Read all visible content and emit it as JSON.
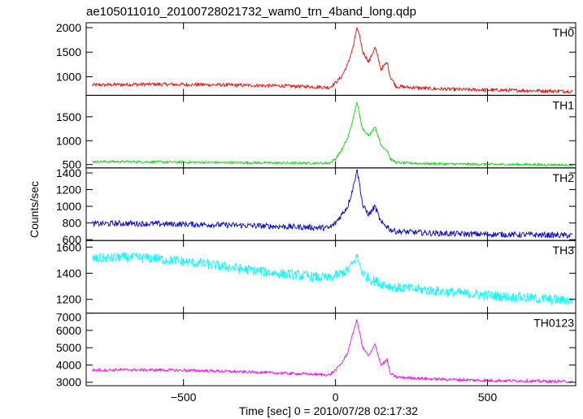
{
  "chart_data": {
    "type": "line",
    "title": "ae105011010_20100728021732_wam0_trn_4band_long.qdp",
    "xlabel": "Time [sec] 0 = 2010/07/28 02:17:32",
    "ylabel": "Counts/sec",
    "xlim": [
      -820,
      790
    ],
    "x_ticks": [
      -500,
      0,
      500
    ],
    "x_tick_labels": [
      "−500",
      "0",
      "500"
    ],
    "grid": false,
    "legend": "none",
    "panels": [
      {
        "name": "TH0",
        "color": "#ff0000",
        "ylim": [
          620,
          2100
        ],
        "y_ticks": [
          1000,
          1500,
          2000
        ],
        "y_tick_labels": [
          "1000",
          "1500",
          "2000"
        ],
        "series": {
          "x": [
            -800,
            -700,
            -600,
            -500,
            -400,
            -300,
            -200,
            -100,
            -20,
            0,
            20,
            40,
            60,
            70,
            80,
            90,
            110,
            130,
            150,
            170,
            180,
            200,
            300,
            400,
            500,
            600,
            700,
            780
          ],
          "y": [
            830,
            840,
            845,
            840,
            835,
            825,
            815,
            800,
            780,
            880,
            1000,
            1250,
            1650,
            2000,
            1800,
            1500,
            1300,
            1600,
            1150,
            1300,
            1000,
            800,
            760,
            740,
            730,
            720,
            710,
            700
          ],
          "noise": 35
        }
      },
      {
        "name": "TH1",
        "color": "#00dd00",
        "ylim": [
          430,
          1950
        ],
        "y_ticks": [
          500,
          1000,
          1500
        ],
        "y_tick_labels": [
          "500",
          "1000",
          "1500"
        ],
        "series": {
          "x": [
            -800,
            -700,
            -600,
            -500,
            -400,
            -300,
            -200,
            -100,
            -20,
            0,
            20,
            40,
            60,
            70,
            80,
            90,
            110,
            130,
            150,
            170,
            180,
            200,
            300,
            400,
            500,
            600,
            700,
            780
          ],
          "y": [
            560,
            560,
            555,
            550,
            545,
            540,
            535,
            530,
            530,
            620,
            800,
            1050,
            1500,
            1820,
            1500,
            1250,
            1100,
            1300,
            900,
            800,
            620,
            540,
            520,
            510,
            505,
            500,
            495,
            490
          ],
          "noise": 25
        }
      },
      {
        "name": "TH2",
        "color": "#0000cc",
        "ylim": [
          590,
          1460
        ],
        "y_ticks": [
          600,
          800,
          1000,
          1200,
          1400
        ],
        "y_tick_labels": [
          "600",
          "800",
          "1000",
          "1200",
          "1400"
        ],
        "series": {
          "x": [
            -800,
            -700,
            -600,
            -500,
            -400,
            -300,
            -200,
            -100,
            -20,
            0,
            20,
            40,
            60,
            70,
            80,
            90,
            110,
            130,
            150,
            170,
            180,
            200,
            300,
            400,
            500,
            600,
            700,
            780
          ],
          "y": [
            790,
            795,
            790,
            785,
            780,
            770,
            760,
            750,
            740,
            800,
            900,
            1000,
            1250,
            1450,
            1250,
            1000,
            900,
            1000,
            800,
            760,
            720,
            700,
            680,
            670,
            665,
            660,
            655,
            650
          ],
          "noise": 35
        }
      },
      {
        "name": "TH3",
        "color": "#00ffff",
        "ylim": [
          1095,
          1650
        ],
        "y_ticks": [
          1200,
          1400,
          1600
        ],
        "y_tick_labels": [
          "1200",
          "1400",
          "1600"
        ],
        "series": {
          "x": [
            -800,
            -700,
            -600,
            -500,
            -400,
            -300,
            -200,
            -100,
            -20,
            0,
            20,
            40,
            60,
            70,
            80,
            90,
            110,
            130,
            150,
            170,
            180,
            200,
            300,
            400,
            500,
            600,
            700,
            780
          ],
          "y": [
            1510,
            1520,
            1515,
            1490,
            1460,
            1430,
            1400,
            1380,
            1360,
            1380,
            1400,
            1420,
            1480,
            1530,
            1460,
            1400,
            1360,
            1340,
            1320,
            1310,
            1300,
            1290,
            1270,
            1250,
            1230,
            1215,
            1200,
            1190
          ],
          "noise": 40
        }
      },
      {
        "name": "TH0123",
        "color": "#ff00ff",
        "ylim": [
          2800,
          7000
        ],
        "y_ticks": [
          3000,
          4000,
          5000,
          6000,
          7000
        ],
        "y_tick_labels": [
          "3000",
          "4000",
          "5000",
          "6000",
          "7000"
        ],
        "series": {
          "x": [
            -800,
            -700,
            -600,
            -500,
            -400,
            -300,
            -200,
            -100,
            -20,
            0,
            20,
            40,
            60,
            70,
            80,
            90,
            110,
            130,
            150,
            170,
            180,
            200,
            300,
            400,
            500,
            600,
            700,
            780
          ],
          "y": [
            3700,
            3720,
            3710,
            3690,
            3650,
            3600,
            3540,
            3480,
            3420,
            3700,
            4100,
            4700,
            6000,
            6600,
            5800,
            5000,
            4500,
            5200,
            4000,
            4300,
            3500,
            3300,
            3200,
            3150,
            3100,
            3080,
            3050,
            3030
          ],
          "noise": 80
        }
      }
    ]
  }
}
